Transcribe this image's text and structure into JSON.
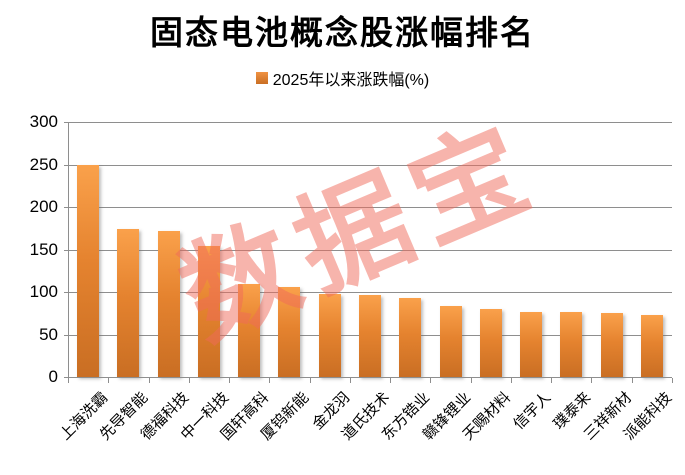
{
  "chart_data": {
    "type": "bar",
    "title": "固态电池概念股涨幅排名",
    "legend": "2025年以来涨跌幅(%)",
    "watermark": "数据宝",
    "categories": [
      "上海洗霸",
      "先导智能",
      "德福科技",
      "中一科技",
      "国轩高科",
      "厦钨新能",
      "金龙羽",
      "道氏技术",
      "东方锆业",
      "赣锋锂业",
      "天赐材料",
      "信宇人",
      "璞泰来",
      "三祥新材",
      "派能科技"
    ],
    "values": [
      250,
      174,
      172,
      154,
      110,
      106,
      98,
      97,
      93,
      84,
      80,
      77,
      76,
      75,
      73
    ],
    "xlabel": "",
    "ylabel": "",
    "ylim": [
      0,
      300
    ],
    "yticks": [
      0,
      50,
      100,
      150,
      200,
      250,
      300
    ],
    "grid": true,
    "legend_position": "top-center",
    "colors": {
      "bar_top": "#FAA14B",
      "bar_bottom": "#C96E23",
      "gridline": "#8E8E8E",
      "watermark": "rgba(240,106,90,0.5)",
      "text": "#000000"
    }
  }
}
